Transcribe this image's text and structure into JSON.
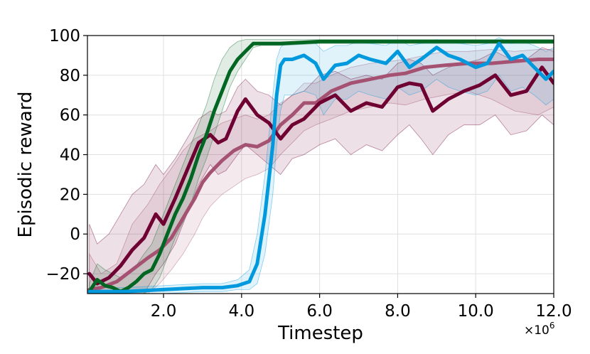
{
  "chart_data": {
    "type": "line",
    "title": "",
    "xlabel": "Timestep",
    "ylabel": "Episodic reward",
    "x_multiplier_label": "×10",
    "x_multiplier_exp": "6",
    "xlim": [
      0.05,
      12.0
    ],
    "ylim": [
      -30,
      100
    ],
    "xticks": [
      2.0,
      4.0,
      6.0,
      8.0,
      10.0,
      12.0
    ],
    "xtick_labels": [
      "2.0",
      "4.0",
      "6.0",
      "8.0",
      "10.0",
      "12.0"
    ],
    "yticks": [
      -20,
      0,
      20,
      40,
      60,
      80,
      100
    ],
    "ytick_labels": [
      "−20",
      "0",
      "20",
      "40",
      "60",
      "80",
      "100"
    ],
    "grid": true,
    "legend": "none",
    "series": [
      {
        "color": "#a55272",
        "stroke_width": 5,
        "x": [
          0.1,
          0.4,
          0.8,
          1.2,
          1.6,
          1.9,
          2.2,
          2.5,
          2.8,
          3.0,
          3.2,
          3.5,
          3.8,
          4.1,
          4.4,
          4.7,
          5.0,
          5.3,
          5.6,
          5.9,
          6.3,
          6.8,
          7.3,
          7.8,
          8.2,
          8.7,
          9.2,
          9.8,
          10.4,
          11.0,
          11.6,
          12.0
        ],
        "y": [
          -28,
          -27,
          -24,
          -18,
          -12,
          -8,
          -2,
          8,
          18,
          26,
          31,
          37,
          42,
          45,
          44,
          47,
          55,
          60,
          66,
          66,
          72,
          76,
          78,
          80,
          81,
          84,
          85,
          86,
          86,
          87,
          88,
          88
        ],
        "band": {
          "lower": [
            -30,
            -30,
            -30,
            -30,
            -30,
            -25,
            -18,
            -10,
            0,
            8,
            14,
            20,
            24,
            28,
            30,
            33,
            40,
            46,
            52,
            55,
            58,
            62,
            64,
            66,
            65,
            68,
            70,
            72,
            68,
            62,
            60,
            64
          ],
          "upper": [
            -10,
            -20,
            -15,
            5,
            15,
            25,
            33,
            42,
            48,
            50,
            52,
            56,
            58,
            60,
            58,
            60,
            66,
            70,
            76,
            76,
            80,
            84,
            86,
            87,
            88,
            90,
            92,
            92,
            93,
            92,
            93,
            93
          ]
        }
      },
      {
        "color": "#6e0032",
        "stroke_width": 5,
        "x": [
          0.1,
          0.3,
          0.6,
          0.9,
          1.2,
          1.5,
          1.8,
          2.0,
          2.3,
          2.6,
          2.9,
          3.2,
          3.4,
          3.6,
          3.9,
          4.1,
          4.4,
          4.7,
          5.0,
          5.3,
          5.6,
          6.0,
          6.4,
          6.8,
          7.2,
          7.6,
          8.0,
          8.3,
          8.6,
          8.9,
          9.3,
          9.7,
          10.1,
          10.5,
          10.9,
          11.3,
          11.7,
          12.0
        ],
        "y": [
          -20,
          -25,
          -22,
          -16,
          -8,
          -2,
          10,
          5,
          18,
          32,
          46,
          50,
          46,
          48,
          62,
          68,
          60,
          56,
          48,
          55,
          58,
          66,
          70,
          62,
          66,
          64,
          74,
          76,
          75,
          62,
          68,
          72,
          75,
          80,
          70,
          72,
          84,
          76
        ],
        "band": {
          "lower": [
            -30,
            -30,
            -30,
            -30,
            -30,
            -30,
            -20,
            -15,
            -5,
            10,
            25,
            35,
            30,
            32,
            40,
            45,
            40,
            35,
            30,
            38,
            40,
            45,
            48,
            40,
            45,
            42,
            50,
            55,
            48,
            40,
            50,
            55,
            55,
            60,
            50,
            52,
            60,
            55
          ],
          "upper": [
            5,
            -5,
            0,
            10,
            20,
            25,
            35,
            30,
            38,
            48,
            58,
            62,
            60,
            62,
            74,
            78,
            72,
            70,
            65,
            70,
            72,
            80,
            82,
            78,
            80,
            78,
            86,
            88,
            86,
            80,
            84,
            86,
            88,
            92,
            88,
            88,
            94,
            92
          ]
        }
      },
      {
        "color": "#006622",
        "stroke_width": 5,
        "x": [
          0.1,
          0.3,
          0.5,
          0.7,
          0.9,
          1.1,
          1.3,
          1.5,
          1.7,
          1.9,
          2.1,
          2.3,
          2.5,
          2.7,
          2.9,
          3.1,
          3.3,
          3.5,
          3.7,
          3.9,
          4.1,
          4.3,
          4.5,
          5.0,
          6.0,
          8.0,
          10.0,
          12.0
        ],
        "y": [
          -29,
          -23,
          -26,
          -27,
          -29,
          -27,
          -24,
          -20,
          -18,
          -10,
          0,
          10,
          18,
          28,
          40,
          50,
          62,
          72,
          82,
          88,
          92,
          96,
          96,
          96,
          97,
          97,
          97,
          97
        ],
        "band": {
          "lower": [
            -30,
            -30,
            -30,
            -30,
            -30,
            -30,
            -30,
            -30,
            -28,
            -22,
            -12,
            -2,
            6,
            15,
            28,
            38,
            50,
            62,
            74,
            82,
            88,
            94,
            95,
            95,
            96,
            96,
            96,
            96
          ],
          "upper": [
            -25,
            -15,
            -18,
            -20,
            -22,
            -20,
            -16,
            -10,
            -5,
            5,
            15,
            25,
            35,
            45,
            55,
            65,
            78,
            88,
            94,
            97,
            98,
            98,
            98,
            98,
            98,
            98,
            98,
            98
          ]
        }
      },
      {
        "color": "#0099dd",
        "stroke_width": 5,
        "x": [
          0.1,
          1.0,
          2.0,
          3.0,
          3.5,
          3.9,
          4.2,
          4.4,
          4.6,
          4.8,
          4.9,
          5.0,
          5.1,
          5.3,
          5.6,
          5.9,
          6.1,
          6.4,
          6.7,
          7.0,
          7.3,
          7.7,
          8.0,
          8.3,
          8.6,
          9.0,
          9.3,
          9.6,
          10.0,
          10.3,
          10.6,
          10.9,
          11.2,
          11.5,
          11.8,
          12.0
        ],
        "y": [
          -29,
          -29,
          -28,
          -27,
          -27,
          -26,
          -24,
          -15,
          10,
          45,
          70,
          85,
          88,
          88,
          90,
          86,
          78,
          85,
          86,
          90,
          88,
          86,
          92,
          84,
          88,
          94,
          90,
          88,
          84,
          86,
          96,
          88,
          90,
          84,
          78,
          82
        ],
        "band": {
          "lower": [
            -30,
            -30,
            -30,
            -29,
            -29,
            -28,
            -28,
            -25,
            -10,
            20,
            45,
            62,
            70,
            70,
            72,
            70,
            60,
            68,
            68,
            72,
            70,
            68,
            74,
            70,
            72,
            78,
            74,
            72,
            70,
            72,
            80,
            72,
            74,
            70,
            65,
            68
          ],
          "upper": [
            -27,
            -27,
            -26,
            -25,
            -25,
            -23,
            -18,
            0,
            30,
            70,
            88,
            94,
            96,
            96,
            97,
            96,
            92,
            95,
            95,
            97,
            96,
            95,
            98,
            95,
            96,
            98,
            97,
            96,
            95,
            96,
            99,
            96,
            97,
            95,
            92,
            94
          ]
        }
      }
    ]
  }
}
